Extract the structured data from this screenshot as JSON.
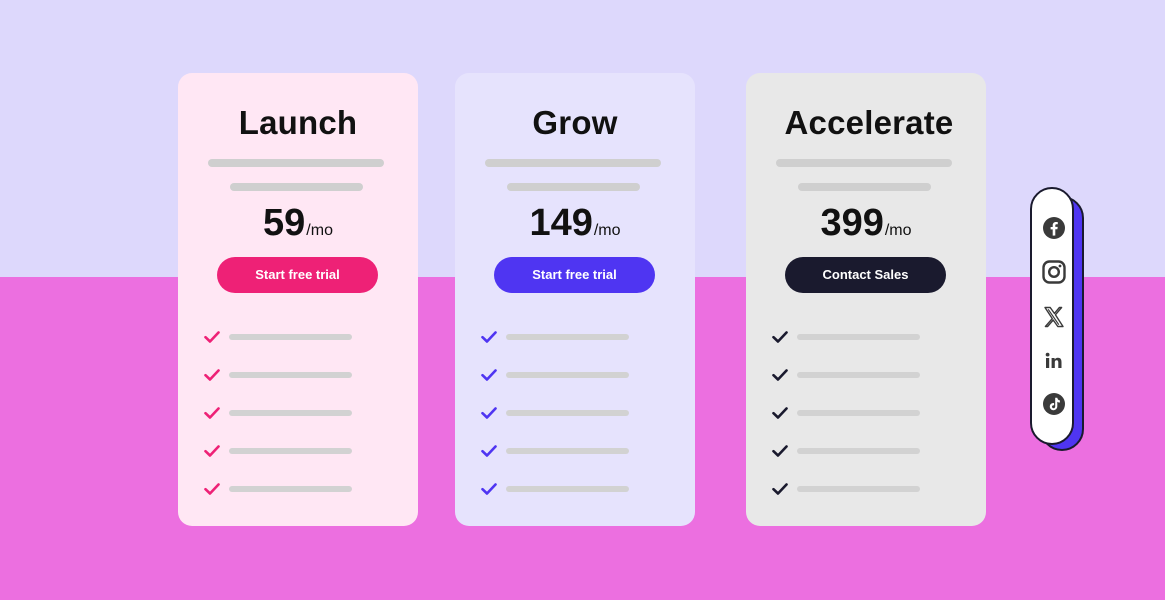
{
  "colors": {
    "background_top": "#ddd8fc",
    "background_bottom": "#ec6fe0",
    "social_accent": "#4f35f2"
  },
  "plans": [
    {
      "name": "Launch",
      "price": "59",
      "unit": "/mo",
      "cta_label": "Start free trial",
      "card_color": "#ffe7f4",
      "accent_color": "#ee2176",
      "features_shown": 5
    },
    {
      "name": "Grow",
      "price": "149",
      "unit": "/mo",
      "cta_label": "Start free trial",
      "card_color": "#e6e3fd",
      "accent_color": "#4f35f2",
      "features_shown": 5
    },
    {
      "name": "Accelerate",
      "price": "399",
      "unit": "/mo",
      "cta_label": "Contact Sales",
      "card_color": "#e8e8e8",
      "accent_color": "#1a1a2e",
      "features_shown": 5
    }
  ],
  "social": {
    "icons": [
      "facebook-icon",
      "instagram-icon",
      "x-icon",
      "linkedin-icon",
      "tiktok-icon"
    ],
    "icon_color": "#3a3a3a"
  }
}
